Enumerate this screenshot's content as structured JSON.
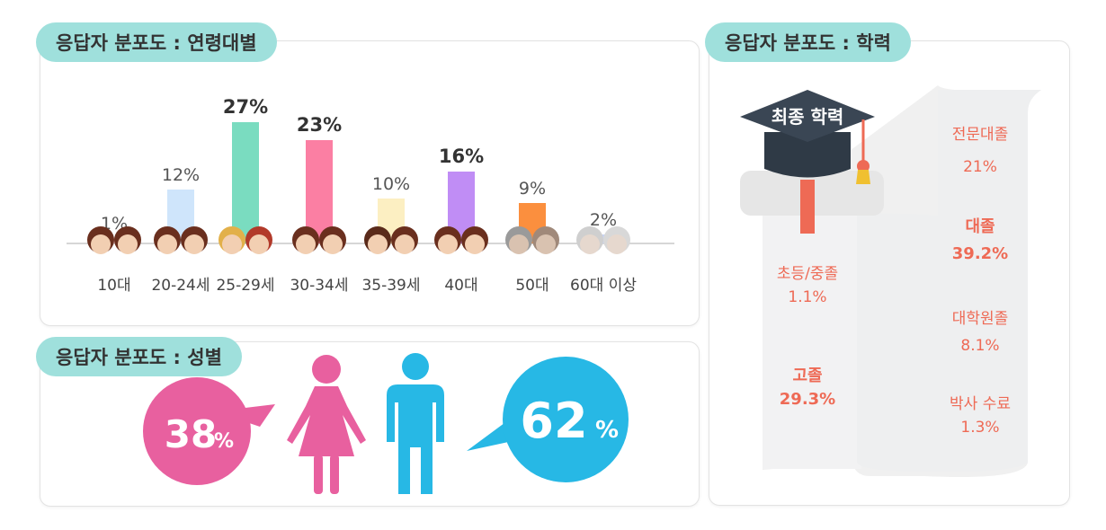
{
  "age_panel": {
    "title": "응답자 분포도 : 연령대별"
  },
  "gender_panel": {
    "title": "응답자 분포도 : 성별",
    "female_value": "38",
    "male_value": "62",
    "unit": "%",
    "female_color": "#e8609f",
    "male_color": "#27b8e5"
  },
  "edu_panel": {
    "title": "응답자 분포도 : 학력",
    "cap_label": "최종 학력",
    "items": [
      {
        "name": "초등/중졸",
        "value": "1.1%"
      },
      {
        "name": "고졸",
        "value": "29.3%"
      },
      {
        "name": "전문대졸",
        "value": "21%"
      },
      {
        "name": "대졸",
        "value": "39.2%"
      },
      {
        "name": "대학원졸",
        "value": "8.1%"
      },
      {
        "name": "박사 수료",
        "value": "1.3%"
      }
    ]
  },
  "chart_data": {
    "type": "bar",
    "title": "응답자 분포도 : 연령대별",
    "categories": [
      "10대",
      "20-24세",
      "25-29세",
      "30-34세",
      "35-39세",
      "40대",
      "50대",
      "60대 이상"
    ],
    "values": [
      1,
      12,
      27,
      23,
      10,
      16,
      9,
      2
    ],
    "labels": [
      "1%",
      "12%",
      "27%",
      "23%",
      "10%",
      "16%",
      "9%",
      "2%"
    ],
    "bold": [
      false,
      false,
      true,
      true,
      false,
      true,
      false,
      false
    ],
    "colors": [
      "#f9cdd3",
      "#cfe5fb",
      "#7adcc0",
      "#fb7fa3",
      "#fcefc2",
      "#c08df5",
      "#fb8f3e",
      "#c6d3f5"
    ],
    "ylim": [
      0,
      27
    ],
    "grid": false
  }
}
